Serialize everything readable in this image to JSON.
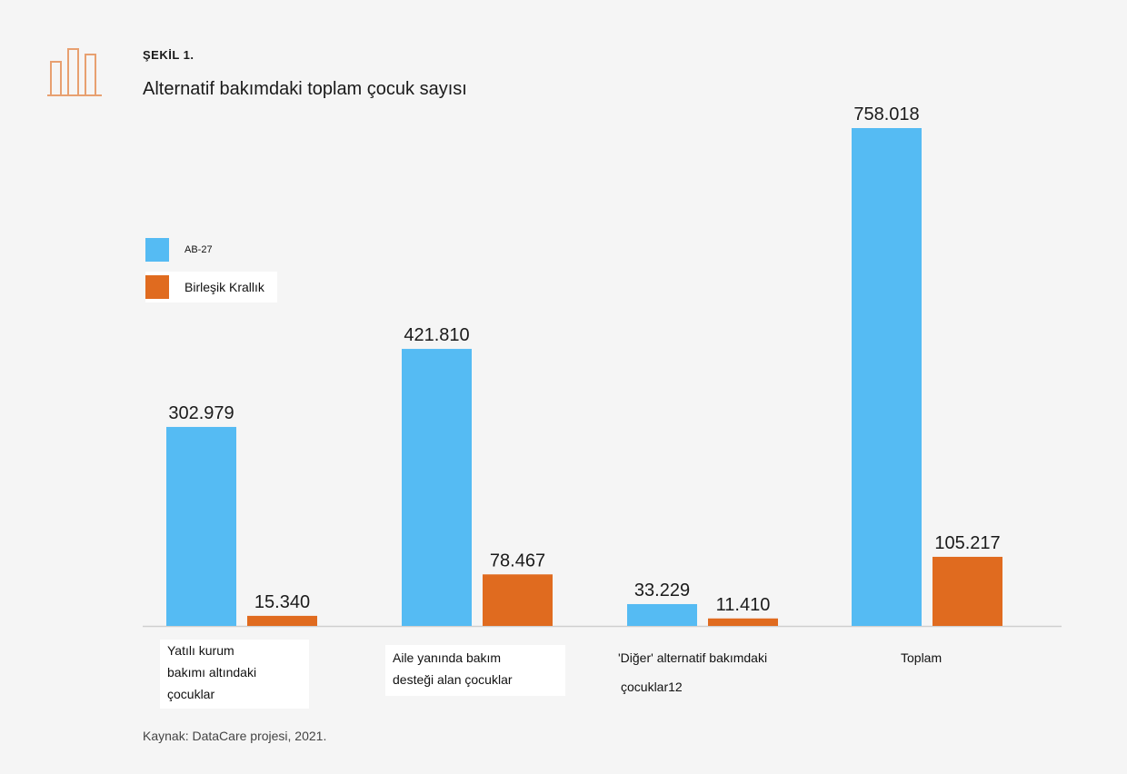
{
  "figure": {
    "label": "ŞEKİL 1.",
    "title": "Alternatif bakımdaki toplam çocuk sayısı",
    "source": "Kaynak: DataCare projesi, 2021.",
    "icon": "bar-chart-icon",
    "icon_color": "#e8a070"
  },
  "colors": {
    "eu27": "#55bbf3",
    "uk": "#e06b1f",
    "axis": "#cfcfcf",
    "background": "#f5f5f5"
  },
  "chart_data": {
    "type": "bar",
    "title": "Alternatif bakımdaki toplam çocuk sayısı",
    "categories": [
      "Yatılı kurum bakımı altındaki çocuklar",
      "Aile yanında bakım desteği alan çocuklar",
      "'Diğer' alternatif bakımdaki çocuklar12",
      "Toplam"
    ],
    "category_lines": [
      [
        "Yatılı kurum",
        "bakımı altındaki",
        "çocuklar"
      ],
      [
        "Aile yanında bakım",
        "desteği alan çocuklar"
      ],
      [
        "'Diğer' alternatif bakımdaki",
        "çocuklar12"
      ],
      [
        "Toplam"
      ]
    ],
    "series": [
      {
        "name": "AB-27",
        "color": "#55bbf3",
        "values": [
          302979,
          421810,
          33229,
          758018
        ],
        "labels": [
          "302.979",
          "421.810",
          "33.229",
          "758.018"
        ]
      },
      {
        "name": "Birleşik Krallık",
        "color": "#e06b1f",
        "values": [
          15340,
          78467,
          11410,
          105217
        ],
        "labels": [
          "15.340",
          "78.467",
          "11.410",
          "105.217"
        ]
      }
    ],
    "legend": "left",
    "ylim": [
      0,
      758018
    ],
    "grid": false
  }
}
